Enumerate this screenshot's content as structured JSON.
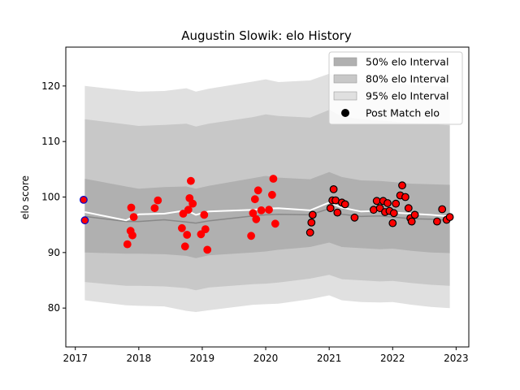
{
  "chart_data": {
    "type": "area",
    "title": "Augustin Slowik: elo History",
    "xlabel": "",
    "ylabel": "elo score",
    "xlim": [
      2016.85,
      2023.2
    ],
    "ylim": [
      73,
      127
    ],
    "x_ticks": [
      2017,
      2018,
      2019,
      2020,
      2021,
      2022,
      2023
    ],
    "x_tick_labels": [
      "2017",
      "2018",
      "2019",
      "2020",
      "2021",
      "2022",
      "2023"
    ],
    "y_ticks": [
      80,
      90,
      100,
      110,
      120
    ],
    "y_tick_labels": [
      "80",
      "90",
      "100",
      "110",
      "120"
    ],
    "grid": false,
    "legend_position": "top-right",
    "legend": [
      {
        "label": "50% elo Interval",
        "kind": "band",
        "color": "#b0b0b0"
      },
      {
        "label": "80% elo Interval",
        "kind": "band",
        "color": "#c8c8c8"
      },
      {
        "label": "95% elo Interval",
        "kind": "band",
        "color": "#e0e0e0"
      },
      {
        "label": "Post Match elo",
        "kind": "marker",
        "color": "#000000"
      }
    ],
    "colors": {
      "band95": "#e0e0e0",
      "band80": "#c8c8c8",
      "band50": "#b0b0b0",
      "mean_line": "#ffffff",
      "median_line": "#888888",
      "point_fill": "#ff0000",
      "point_edge_early": "#0000cc",
      "point_edge_late": "#000000"
    },
    "series": [
      {
        "kind": "intervals",
        "x": [
          2017.15,
          2017.8,
          2018.0,
          2018.4,
          2018.75,
          2018.9,
          2019.1,
          2019.8,
          2020.0,
          2020.2,
          2020.7,
          2021.0,
          2021.2,
          2021.5,
          2021.8,
          2022.0,
          2022.3,
          2022.6,
          2022.9
        ],
        "mean": [
          97.3,
          95.8,
          96.9,
          97.0,
          97.6,
          96.8,
          97.4,
          97.7,
          97.9,
          98.0,
          97.6,
          99.0,
          98.1,
          97.4,
          97.5,
          97.2,
          97.0,
          96.8,
          96.5
        ],
        "median": [
          96.5,
          95.6,
          95.6,
          95.9,
          95.5,
          95.3,
          95.7,
          96.6,
          96.8,
          96.9,
          96.8,
          97.9,
          96.9,
          96.5,
          96.6,
          96.4,
          96.1,
          96.0,
          95.8
        ],
        "lo50": [
          90.0,
          89.8,
          89.8,
          89.7,
          89.4,
          89.0,
          89.5,
          90.0,
          90.2,
          90.5,
          91.0,
          91.8,
          91.0,
          90.8,
          90.6,
          90.7,
          90.3,
          90.0,
          89.9
        ],
        "hi50": [
          103.3,
          101.9,
          101.5,
          101.8,
          101.9,
          101.5,
          102.0,
          103.4,
          103.8,
          103.5,
          103.2,
          104.5,
          103.6,
          103.0,
          102.9,
          102.7,
          102.4,
          102.3,
          102.2
        ],
        "lo80": [
          84.7,
          84.0,
          84.0,
          83.9,
          83.6,
          83.2,
          83.7,
          84.3,
          84.4,
          84.6,
          85.3,
          86.0,
          85.2,
          85.0,
          84.8,
          84.9,
          84.5,
          84.2,
          84.0
        ],
        "hi80": [
          114.0,
          113.1,
          112.8,
          113.0,
          113.2,
          112.7,
          113.2,
          114.4,
          114.9,
          114.6,
          114.3,
          115.7,
          114.5,
          114.0,
          113.8,
          113.6,
          113.3,
          113.1,
          112.9
        ],
        "lo95": [
          81.4,
          80.5,
          80.4,
          80.3,
          79.5,
          79.3,
          79.6,
          80.6,
          80.7,
          80.8,
          81.6,
          82.3,
          81.4,
          81.1,
          81.0,
          81.1,
          80.6,
          80.2,
          80.0
        ],
        "hi95": [
          120.0,
          119.2,
          119.0,
          119.1,
          119.6,
          119.0,
          119.5,
          120.8,
          121.2,
          120.7,
          121.0,
          122.2,
          121.2,
          121.0,
          120.8,
          120.5,
          120.2,
          120.0,
          119.8
        ]
      },
      {
        "kind": "points",
        "name": "Post Match elo",
        "x": [
          2017.13,
          2017.15,
          2017.82,
          2017.87,
          2017.88,
          2017.9,
          2017.92,
          2018.25,
          2018.3,
          2018.68,
          2018.7,
          2018.73,
          2018.76,
          2018.78,
          2018.8,
          2018.82,
          2018.85,
          2018.98,
          2019.03,
          2019.05,
          2019.08,
          2019.77,
          2019.8,
          2019.83,
          2019.85,
          2019.88,
          2019.93,
          2020.05,
          2020.1,
          2020.12,
          2020.15,
          2020.7,
          2020.72,
          2020.74,
          2021.02,
          2021.05,
          2021.07,
          2021.1,
          2021.13,
          2021.2,
          2021.25,
          2021.4,
          2021.7,
          2021.75,
          2021.8,
          2021.85,
          2021.88,
          2021.92,
          2021.95,
          2022.0,
          2022.02,
          2022.05,
          2022.12,
          2022.15,
          2022.2,
          2022.25,
          2022.28,
          2022.3,
          2022.35,
          2022.7,
          2022.78,
          2022.85,
          2022.9
        ],
        "values": [
          99.5,
          95.8,
          91.5,
          93.9,
          98.1,
          93.1,
          96.4,
          98.0,
          99.4,
          94.4,
          97.0,
          91.1,
          93.2,
          97.7,
          99.8,
          102.9,
          98.8,
          93.3,
          96.8,
          94.2,
          90.5,
          93.0,
          97.1,
          99.6,
          96.0,
          101.2,
          97.6,
          97.7,
          100.4,
          103.3,
          95.2,
          93.6,
          95.4,
          96.8,
          98.0,
          99.4,
          101.4,
          99.4,
          97.2,
          99.0,
          98.7,
          96.3,
          97.7,
          99.3,
          98.0,
          99.3,
          97.3,
          98.9,
          97.5,
          95.3,
          97.1,
          98.8,
          100.3,
          102.1,
          100.0,
          98.0,
          96.2,
          95.6,
          96.8,
          95.6,
          97.8,
          95.9,
          96.4
        ]
      }
    ]
  }
}
